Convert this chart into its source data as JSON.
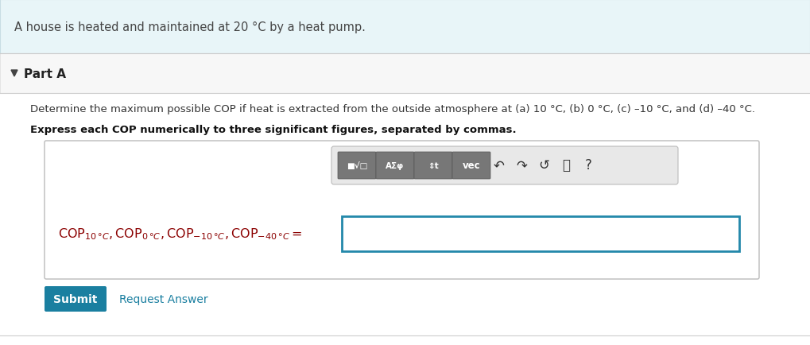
{
  "bg_color": "#ffffff",
  "top_banner_color": "#e8f5f8",
  "top_banner_border": "#c8dde4",
  "top_banner_text_color": "#444444",
  "part_section_bg": "#f7f7f7",
  "part_section_border": "#dddddd",
  "part_a_label": "Part A",
  "part_a_color": "#222222",
  "question_color": "#333333",
  "bold_color": "#111111",
  "input_box_border": "#2288aa",
  "input_box_bg": "#ffffff",
  "toolbar_bg": "#e8e8e8",
  "toolbar_border": "#bbbbbb",
  "btn_color": "#777777",
  "btn_border": "#555555",
  "submit_btn_color": "#1a7fa0",
  "submit_btn_text": "Submit",
  "submit_text_color": "#ffffff",
  "request_answer_text": "Request Answer",
  "request_answer_color": "#1a7fa0",
  "cop_label_color": "#8b0000",
  "divider_color": "#cccccc",
  "arrow_color": "#444444",
  "container_border": "#bbbbbb",
  "container_bg": "#ffffff"
}
